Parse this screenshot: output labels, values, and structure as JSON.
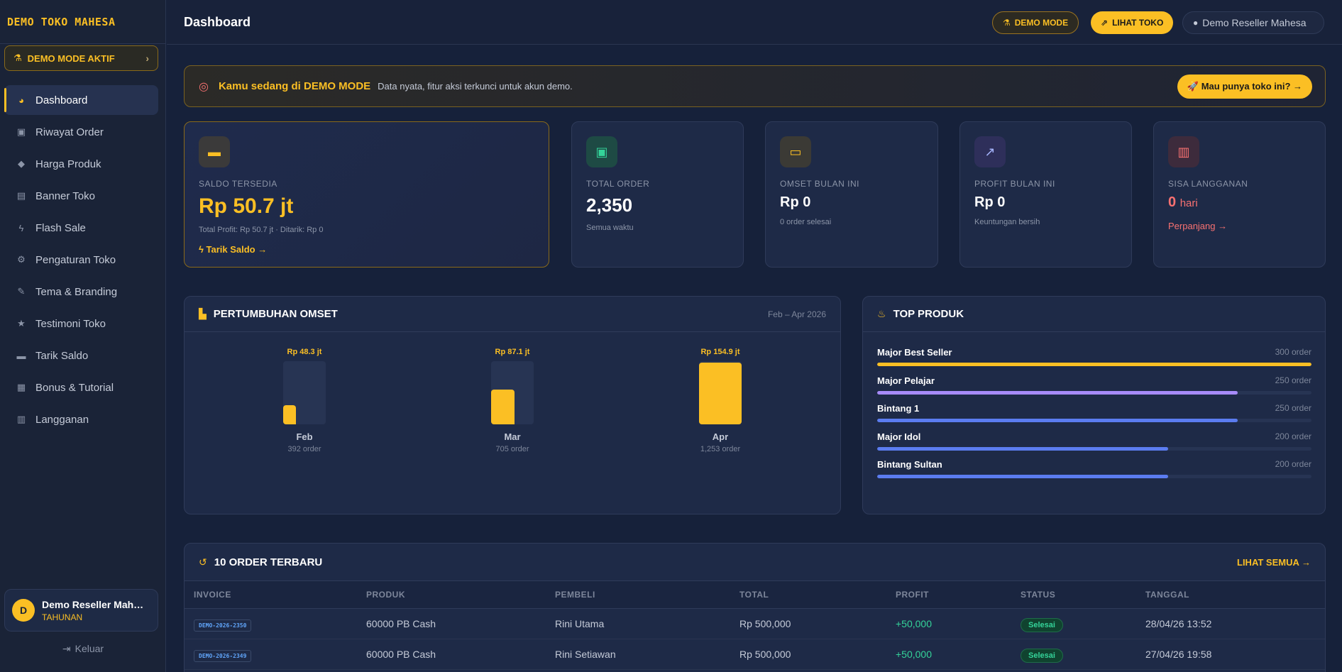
{
  "sidebar": {
    "brand": "DEMO TOKO MAHESA",
    "demo_pill": "DEMO MODE AKTIF",
    "items": [
      {
        "label": "Dashboard",
        "icon": "chart-pie-icon"
      },
      {
        "label": "Riwayat Order",
        "icon": "bag-icon"
      },
      {
        "label": "Harga Produk",
        "icon": "tag-icon"
      },
      {
        "label": "Banner Toko",
        "icon": "image-icon"
      },
      {
        "label": "Flash Sale",
        "icon": "bolt-icon"
      },
      {
        "label": "Pengaturan Toko",
        "icon": "gear-icon"
      },
      {
        "label": "Tema & Branding",
        "icon": "brush-icon"
      },
      {
        "label": "Testimoni Toko",
        "icon": "star-icon"
      },
      {
        "label": "Tarik Saldo",
        "icon": "wallet-icon"
      },
      {
        "label": "Bonus & Tutorial",
        "icon": "gift-icon"
      },
      {
        "label": "Langganan",
        "icon": "calendar-icon"
      }
    ],
    "user": {
      "initial": "D",
      "name": "Demo Reseller Mahesa",
      "plan": "TAHUNAN"
    },
    "logout": "Keluar"
  },
  "topbar": {
    "title": "Dashboard",
    "demo_btn": "DEMO MODE",
    "lihat_btn": "LIHAT TOKO",
    "user_btn": "Demo Reseller Mahesa"
  },
  "banner": {
    "title": "Kamu sedang di DEMO MODE",
    "text": "Data nyata, fitur aksi terkunci untuk akun demo.",
    "cta": "🚀 Mau punya toko ini? →"
  },
  "stats": {
    "saldo": {
      "label": "SALDO TERSEDIA",
      "value": "Rp 50.7 jt",
      "sub": "Total Profit: Rp 50.7 jt · Ditarik: Rp 0",
      "link": "Tarik Saldo →"
    },
    "order": {
      "label": "TOTAL ORDER",
      "value": "2,350",
      "sub": "Semua waktu"
    },
    "omset": {
      "label": "OMSET BULAN INI",
      "value": "Rp 0",
      "sub": "0 order selesai"
    },
    "profit": {
      "label": "PROFIT BULAN INI",
      "value": "Rp 0",
      "sub": "Keuntungan bersih"
    },
    "langganan": {
      "label": "SISA LANGGANAN",
      "value": "0",
      "unit": "hari",
      "link": "Perpanjang →"
    }
  },
  "growth": {
    "title": "PERTUMBUHAN OMSET",
    "range": "Feb – Apr 2026"
  },
  "chart_data": {
    "type": "bar",
    "title": "PERTUMBUHAN OMSET",
    "categories": [
      "Feb",
      "Mar",
      "Apr"
    ],
    "values": [
      48.3,
      87.1,
      154.9
    ],
    "value_labels": [
      "Rp 48.3 jt",
      "Rp 87.1 jt",
      "Rp 154.9 jt"
    ],
    "sublabels": [
      "392 order",
      "705 order",
      "1,253 order"
    ],
    "ylim": [
      0,
      154.9
    ],
    "grid": false,
    "color": "#fbbf24"
  },
  "top_produk": {
    "title": "TOP PRODUK",
    "max": 300,
    "items": [
      {
        "name": "Major Best Seller",
        "count": 300,
        "count_label": "300 order",
        "color": "#fbbf24"
      },
      {
        "name": "Major Pelajar",
        "count": 250,
        "count_label": "250 order",
        "color": "#a78bfa"
      },
      {
        "name": "Bintang 1",
        "count": 250,
        "count_label": "250 order",
        "color": "#5b7cf0"
      },
      {
        "name": "Major Idol",
        "count": 200,
        "count_label": "200 order",
        "color": "#5b7cf0"
      },
      {
        "name": "Bintang Sultan",
        "count": 200,
        "count_label": "200 order",
        "color": "#5b7cf0"
      }
    ]
  },
  "orders": {
    "title": "10 ORDER TERBARU",
    "lihat": "LIHAT SEMUA →",
    "headers": [
      "INVOICE",
      "PRODUK",
      "PEMBELI",
      "TOTAL",
      "PROFIT",
      "STATUS",
      "TANGGAL"
    ],
    "rows": [
      {
        "invoice": "DEMO-2026-2350",
        "produk": "60000 PB Cash",
        "pembeli": "Rini Utama",
        "total": "Rp 500,000",
        "profit": "+50,000",
        "status": "Selesai",
        "tanggal": "28/04/26 13:52"
      },
      {
        "invoice": "DEMO-2026-2349",
        "produk": "60000 PB Cash",
        "pembeli": "Rini Setiawan",
        "total": "Rp 500,000",
        "profit": "+50,000",
        "status": "Selesai",
        "tanggal": "27/04/26 19:58"
      }
    ]
  }
}
